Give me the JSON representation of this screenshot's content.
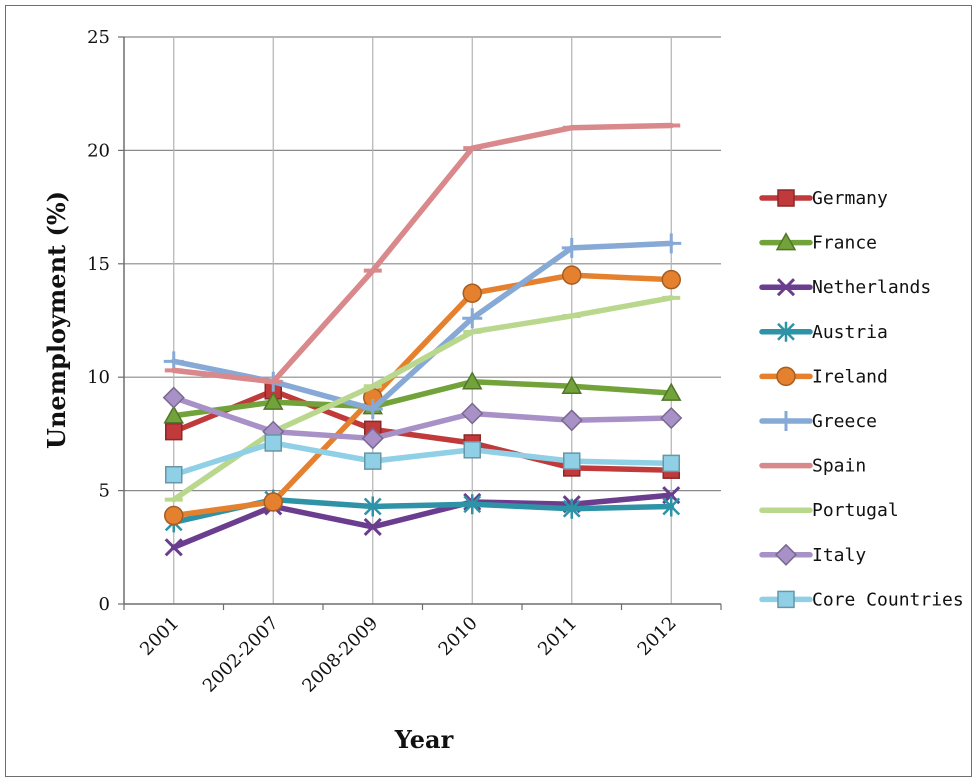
{
  "chart_data": {
    "type": "line",
    "xlabel": "Year",
    "ylabel": "Unemployment (%)",
    "ylim": [
      0,
      25
    ],
    "yticks": [
      0,
      5,
      10,
      15,
      20,
      25
    ],
    "grid": true,
    "legend_position": "right",
    "categories": [
      "2001",
      "2002-2007",
      "2008-2009",
      "2010",
      "2011",
      "2012"
    ],
    "series": [
      {
        "name": "Germany",
        "color": "#c0393b",
        "marker": "square",
        "values": [
          7.6,
          9.4,
          7.7,
          7.1,
          6.0,
          5.9
        ]
      },
      {
        "name": "France",
        "color": "#72a33a",
        "marker": "triangle",
        "values": [
          8.3,
          8.9,
          8.7,
          9.8,
          9.6,
          9.3
        ]
      },
      {
        "name": "Netherlands",
        "color": "#6a3d8f",
        "marker": "x",
        "values": [
          2.5,
          4.3,
          3.4,
          4.5,
          4.4,
          4.8
        ]
      },
      {
        "name": "Austria",
        "color": "#2e93a6",
        "marker": "star",
        "values": [
          3.6,
          4.6,
          4.3,
          4.4,
          4.2,
          4.3
        ]
      },
      {
        "name": "Ireland",
        "color": "#e5812e",
        "marker": "circle",
        "values": [
          3.9,
          4.5,
          9.1,
          13.7,
          14.5,
          14.3
        ]
      },
      {
        "name": "Greece",
        "color": "#86a9d6",
        "marker": "plus",
        "values": [
          10.7,
          9.8,
          8.6,
          12.6,
          15.7,
          15.9
        ]
      },
      {
        "name": "Spain",
        "color": "#d9898b",
        "marker": "dash",
        "values": [
          10.3,
          9.8,
          14.7,
          20.1,
          21.0,
          21.1
        ]
      },
      {
        "name": "Portugal",
        "color": "#b9d88e",
        "marker": "dash",
        "values": [
          4.6,
          7.6,
          9.6,
          12.0,
          12.7,
          13.5
        ]
      },
      {
        "name": "Italy",
        "color": "#a891c7",
        "marker": "diamond",
        "values": [
          9.1,
          7.6,
          7.3,
          8.4,
          8.1,
          8.2
        ]
      },
      {
        "name": "Core Countries",
        "color": "#8fd0e6",
        "marker": "square",
        "values": [
          5.7,
          7.1,
          6.3,
          6.8,
          6.3,
          6.2
        ]
      }
    ]
  }
}
